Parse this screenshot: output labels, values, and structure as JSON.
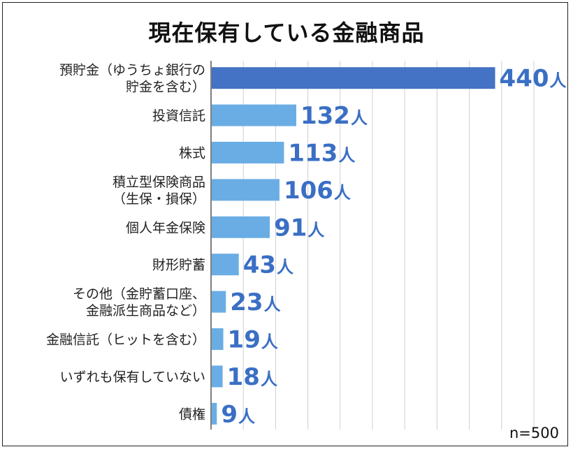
{
  "chart_data": {
    "type": "bar",
    "orientation": "horizontal",
    "title": "現在保有している金融商品",
    "categories": [
      [
        "預貯金（ゆうちょ銀行の",
        "貯金を含む）"
      ],
      [
        "投資信託"
      ],
      [
        "株式"
      ],
      [
        "積立型保険商品",
        "（生保・損保）"
      ],
      [
        "個人年金保険"
      ],
      [
        "財形貯蓄"
      ],
      [
        "その他（金貯蓄口座、",
        "金融派生商品など）"
      ],
      [
        "金融信託（ヒットを含む）"
      ],
      [
        "いずれも保有していない"
      ],
      [
        "債権"
      ]
    ],
    "values": [
      440,
      132,
      113,
      106,
      91,
      43,
      23,
      19,
      18,
      9
    ],
    "unit": "人",
    "xlim": [
      0,
      500
    ],
    "grid": true,
    "highlight_color": "#4472c4",
    "bar_color": "#6aade4",
    "note": "n=500"
  }
}
